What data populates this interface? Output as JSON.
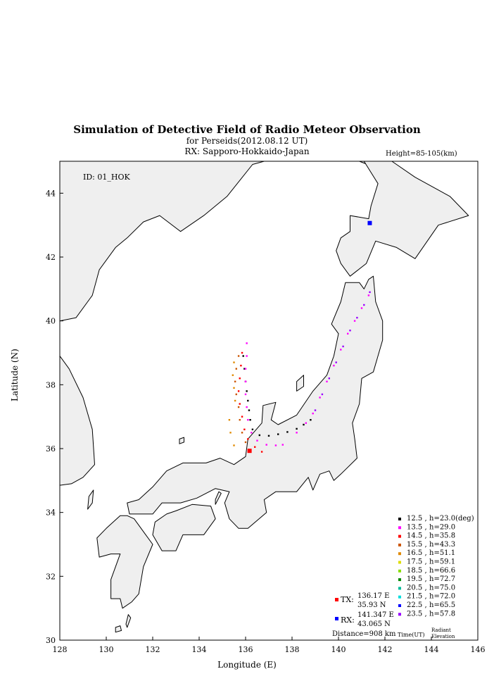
{
  "title": "Simulation of Detective Field of Radio Meteor Observation",
  "subtitle": "for Perseids(2012.08.12 UT)",
  "rx_label": "RX: Sapporo-Hokkaido-Japan",
  "height_label": "Height=85-105(km)",
  "id_label": "ID: 01_HOK",
  "xlabel": "Longitude (E)",
  "ylabel": "Latitude (N)",
  "colors": {
    "land": "#efefef",
    "coast": "#000000",
    "tx": "#ff0000",
    "rx": "#0000ff"
  },
  "chart_data": {
    "type": "scatter",
    "xlim": [
      128,
      146
    ],
    "ylim": [
      30,
      45
    ],
    "xticks": [
      128,
      130,
      132,
      134,
      136,
      138,
      140,
      142,
      144,
      146
    ],
    "yticks": [
      30,
      32,
      34,
      36,
      38,
      40,
      42,
      44
    ],
    "tx": {
      "label": "TX:",
      "lon": 136.17,
      "lat": 35.93,
      "lon_text": "136.17 E",
      "lat_text": "35.93 N"
    },
    "rx": {
      "label": "RX:",
      "lon": 141.347,
      "lat": 43.065,
      "lon_text": "141.347 E",
      "lat_text": "43.065 N"
    },
    "distance": "Distance=908 km",
    "legend_time_header": "Time(UT)",
    "legend_elev_header": "Radiant Elevation",
    "series": [
      {
        "time": "12.5",
        "elev": "h=23.0(deg)",
        "color": "#000000",
        "points": [
          [
            135.9,
            38.9
          ],
          [
            135.95,
            38.5
          ],
          [
            136.0,
            38.1
          ],
          [
            136.05,
            37.8
          ],
          [
            136.1,
            37.5
          ],
          [
            136.15,
            37.2
          ],
          [
            136.2,
            36.9
          ],
          [
            136.3,
            36.6
          ],
          [
            136.6,
            36.42
          ],
          [
            137.0,
            36.4
          ],
          [
            137.4,
            36.45
          ],
          [
            137.8,
            36.52
          ],
          [
            138.2,
            36.62
          ],
          [
            138.5,
            36.75
          ],
          [
            138.8,
            36.9
          ]
        ]
      },
      {
        "time": "13.5",
        "elev": "h=29.0",
        "color": "#ff00ff",
        "points": [
          [
            136.05,
            39.3
          ],
          [
            136.05,
            38.9
          ],
          [
            136.0,
            38.5
          ],
          [
            136.0,
            38.1
          ],
          [
            136.0,
            37.7
          ],
          [
            136.05,
            37.3
          ],
          [
            136.1,
            36.9
          ],
          [
            136.25,
            36.5
          ],
          [
            136.5,
            36.25
          ],
          [
            136.9,
            36.12
          ],
          [
            137.3,
            36.1
          ],
          [
            137.6,
            36.12
          ],
          [
            138.2,
            36.5
          ],
          [
            138.6,
            36.8
          ],
          [
            138.9,
            37.1
          ],
          [
            139.2,
            37.6
          ],
          [
            139.5,
            38.1
          ],
          [
            139.8,
            38.6
          ],
          [
            140.1,
            39.1
          ],
          [
            140.4,
            39.6
          ],
          [
            140.7,
            40.0
          ],
          [
            141.0,
            40.4
          ],
          [
            141.3,
            40.8
          ]
        ]
      },
      {
        "time": "14.5",
        "elev": "h=35.8",
        "color": "#ff0000",
        "points": [
          [
            135.85,
            39.0
          ],
          [
            135.8,
            38.6
          ],
          [
            135.75,
            38.2
          ],
          [
            135.7,
            37.8
          ],
          [
            135.75,
            37.4
          ],
          [
            135.85,
            37.0
          ],
          [
            135.95,
            36.6
          ],
          [
            136.1,
            36.3
          ],
          [
            136.4,
            36.05
          ],
          [
            136.7,
            35.9
          ]
        ]
      },
      {
        "time": "15.5",
        "elev": "h=43.3",
        "color": "#cc5500",
        "points": [
          [
            135.7,
            38.9
          ],
          [
            135.6,
            38.5
          ],
          [
            135.55,
            38.1
          ],
          [
            135.6,
            37.7
          ],
          [
            135.7,
            37.3
          ],
          [
            135.75,
            36.9
          ],
          [
            135.85,
            36.5
          ],
          [
            136.0,
            36.2
          ]
        ]
      },
      {
        "time": "16.5",
        "elev": "h=51.1",
        "color": "#e08a00",
        "points": [
          [
            135.5,
            38.7
          ],
          [
            135.45,
            38.3
          ],
          [
            135.5,
            37.9
          ],
          [
            135.55,
            37.5
          ],
          [
            135.3,
            36.9
          ],
          [
            135.35,
            36.5
          ],
          [
            135.5,
            36.1
          ]
        ]
      },
      {
        "time": "17.5",
        "elev": "h=59.1",
        "color": "#dddd00",
        "points": []
      },
      {
        "time": "18.5",
        "elev": "h=66.6",
        "color": "#88dd00",
        "points": []
      },
      {
        "time": "19.5",
        "elev": "h=72.7",
        "color": "#008800",
        "points": []
      },
      {
        "time": "20.5",
        "elev": "h=75.0",
        "color": "#00bb99",
        "points": []
      },
      {
        "time": "21.5",
        "elev": "h=72.0",
        "color": "#00dddd",
        "points": []
      },
      {
        "time": "22.5",
        "elev": "h=65.5",
        "color": "#0000ff",
        "points": []
      },
      {
        "time": "23.5",
        "elev": "h=57.8",
        "color": "#9900ff",
        "points": [
          [
            139.0,
            37.2
          ],
          [
            139.3,
            37.7
          ],
          [
            139.6,
            38.2
          ],
          [
            139.9,
            38.7
          ],
          [
            140.2,
            39.2
          ],
          [
            140.5,
            39.7
          ],
          [
            140.8,
            40.1
          ],
          [
            141.1,
            40.5
          ],
          [
            141.35,
            40.9
          ]
        ]
      }
    ]
  }
}
